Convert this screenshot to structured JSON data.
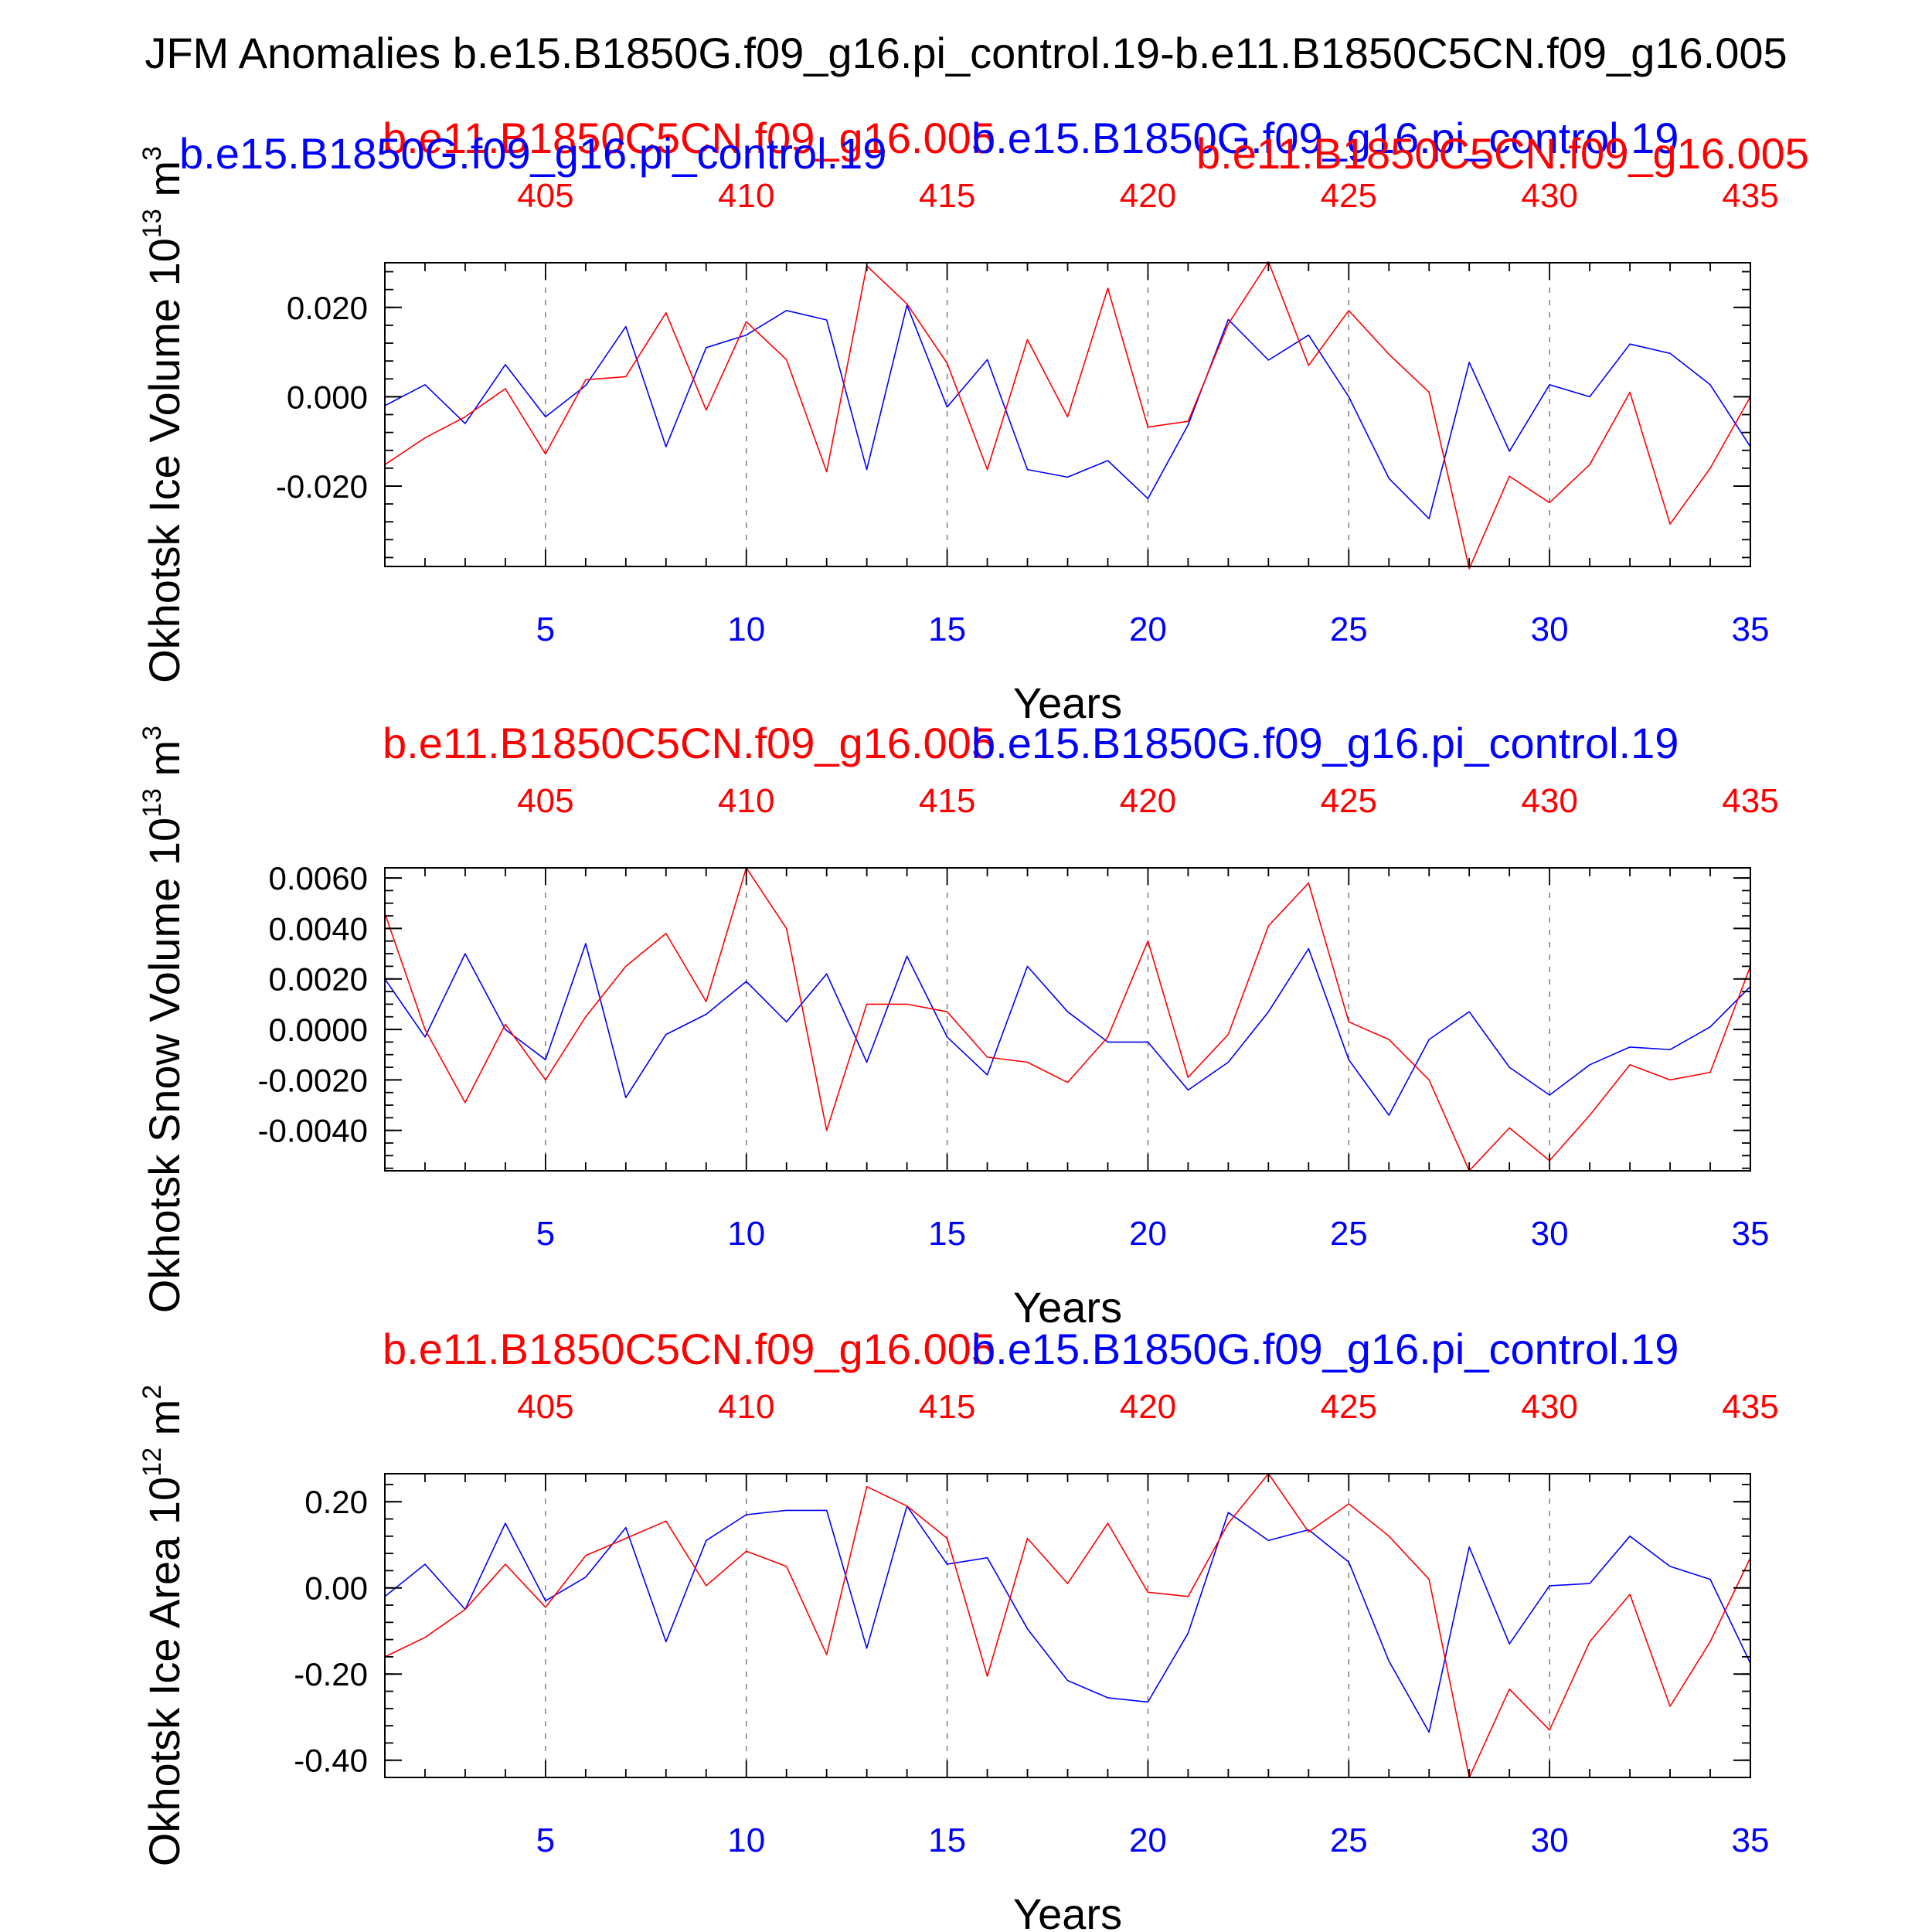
{
  "figure_title": "JFM Anomalies b.e15.B1850G.f09_g16.pi_control.19-b.e11.B1850C5CN.f09_g16.005",
  "colors": {
    "case1": "#0000ff",
    "case2": "#ff0000",
    "axis": "#000000",
    "grid": "#808080"
  },
  "chart_data": [
    {
      "type": "line",
      "ylabel_main": "Okhotsk Ice Volume 10",
      "ylabel_exp": "13",
      "ylabel_unit": " m",
      "ylabel_unit_exp": "3",
      "xlabel": "Years",
      "top_labels": {
        "left": "b.e11.B1850C5CN.f09_g16.005",
        "right": "b.e15.B1850G.f09_g16.pi_control.19"
      },
      "overlap_labels": {
        "left": "b.e15.B1850G.f09_g16.pi_control.19",
        "right": "b.e11.B1850C5CN.f09_g16.005"
      },
      "xlim": [
        1,
        35
      ],
      "ylim": [
        -0.038,
        0.03
      ],
      "bottom_ticks": [
        5,
        10,
        15,
        20,
        25,
        30,
        35
      ],
      "top_ticks": [
        405,
        410,
        415,
        420,
        425,
        430,
        435
      ],
      "top_offset": 400,
      "yticks": [
        0.02,
        0.0,
        -0.02
      ],
      "ytick_labels": [
        "0.020",
        "0.000",
        "-0.020"
      ],
      "yminor_step": 0.004,
      "series": [
        {
          "name": "b.e15.B1850G.f09_g16.pi_control.19",
          "color": "#0000ff",
          "x": [
            1,
            2,
            3,
            4,
            5,
            6,
            7,
            8,
            9,
            10,
            11,
            12,
            13,
            14,
            15,
            16,
            17,
            18,
            19,
            20,
            21,
            22,
            23,
            24,
            25,
            26,
            27,
            28,
            29,
            30,
            31,
            32,
            33,
            34,
            35
          ],
          "values": [
            -0.002,
            0.0027,
            -0.006,
            0.0072,
            -0.0045,
            0.0025,
            0.0157,
            -0.0112,
            0.011,
            0.0138,
            0.0193,
            0.0172,
            -0.0163,
            0.0205,
            -0.0023,
            0.0083,
            -0.0163,
            -0.018,
            -0.0143,
            -0.0228,
            -0.0063,
            0.0173,
            0.0082,
            0.0138,
            0.0,
            -0.0183,
            -0.0273,
            0.0077,
            -0.0122,
            0.0027,
            0.0,
            0.0118,
            0.0097,
            0.0027,
            -0.0112
          ]
        },
        {
          "name": "b.e11.B1850C5CN.f09_g16.005",
          "color": "#ff0000",
          "x": [
            1,
            2,
            3,
            4,
            5,
            6,
            7,
            8,
            9,
            10,
            11,
            12,
            13,
            14,
            15,
            16,
            17,
            18,
            19,
            20,
            21,
            22,
            23,
            24,
            25,
            26,
            27,
            28,
            29,
            30,
            31,
            32,
            33,
            34,
            35
          ],
          "values": [
            -0.0152,
            -0.0092,
            -0.0045,
            0.0018,
            -0.0128,
            0.0038,
            0.0045,
            0.0188,
            -0.003,
            0.0168,
            0.0083,
            -0.0168,
            0.0293,
            0.0208,
            0.0075,
            -0.0163,
            0.0128,
            -0.0045,
            0.0243,
            -0.0068,
            -0.0055,
            0.0163,
            0.0302,
            0.007,
            0.0193,
            0.0095,
            0.001,
            -0.0385,
            -0.0178,
            -0.0237,
            -0.0152,
            0.001,
            -0.0285,
            -0.016,
            0.0
          ]
        }
      ]
    },
    {
      "type": "line",
      "ylabel_main": "Okhotsk Snow Volume 10",
      "ylabel_exp": "13",
      "ylabel_unit": " m",
      "ylabel_unit_exp": "3",
      "xlabel": "Years",
      "top_labels": {
        "left": "b.e11.B1850C5CN.f09_g16.005",
        "right": "b.e15.B1850G.f09_g16.pi_control.19"
      },
      "xlim": [
        1,
        35
      ],
      "ylim": [
        -0.0056,
        0.0064
      ],
      "bottom_ticks": [
        5,
        10,
        15,
        20,
        25,
        30,
        35
      ],
      "top_ticks": [
        405,
        410,
        415,
        420,
        425,
        430,
        435
      ],
      "top_offset": 400,
      "yticks": [
        0.006,
        0.004,
        0.002,
        0.0,
        -0.002,
        -0.004
      ],
      "ytick_labels": [
        "0.0060",
        "0.0040",
        "0.0020",
        "0.0000",
        "-0.0020",
        "-0.0040"
      ],
      "yminor_step": 0.0005,
      "series": [
        {
          "name": "b.e15.B1850G.f09_g16.pi_control.19",
          "color": "#0000ff",
          "x": [
            1,
            2,
            3,
            4,
            5,
            6,
            7,
            8,
            9,
            10,
            11,
            12,
            13,
            14,
            15,
            16,
            17,
            18,
            19,
            20,
            21,
            22,
            23,
            24,
            25,
            26,
            27,
            28,
            29,
            30,
            31,
            32,
            33,
            34,
            35
          ],
          "values": [
            0.002,
            -0.0003,
            0.003,
            0.0,
            -0.0012,
            0.0034,
            -0.0027,
            -0.0002,
            0.0006,
            0.0019,
            0.0003,
            0.0022,
            -0.0013,
            0.0029,
            -0.0003,
            -0.0018,
            0.0025,
            0.0007,
            -0.0005,
            -0.0005,
            -0.0024,
            -0.0013,
            0.0007,
            0.0032,
            -0.0012,
            -0.0034,
            -0.0004,
            0.0007,
            -0.0015,
            -0.0026,
            -0.0014,
            -0.0007,
            -0.0008,
            0.0001,
            0.0017
          ]
        },
        {
          "name": "b.e11.B1850C5CN.f09_g16.005",
          "color": "#ff0000",
          "x": [
            1,
            2,
            3,
            4,
            5,
            6,
            7,
            8,
            9,
            10,
            11,
            12,
            13,
            14,
            15,
            16,
            17,
            18,
            19,
            20,
            21,
            22,
            23,
            24,
            25,
            26,
            27,
            28,
            29,
            30,
            31,
            32,
            33,
            34,
            35
          ],
          "values": [
            0.0046,
            0.0,
            -0.0029,
            0.0002,
            -0.002,
            0.0005,
            0.0025,
            0.0038,
            0.0011,
            0.0064,
            0.004,
            -0.004,
            0.001,
            0.001,
            0.0007,
            -0.0011,
            -0.0013,
            -0.0021,
            -0.0003,
            0.0035,
            -0.0019,
            -0.0002,
            0.0041,
            0.0058,
            0.0003,
            -0.0004,
            -0.002,
            -0.0056,
            -0.0039,
            -0.0052,
            -0.0034,
            -0.0014,
            -0.002,
            -0.0017,
            0.0025
          ]
        }
      ]
    },
    {
      "type": "line",
      "ylabel_main": "Okhotsk Ice Area 10",
      "ylabel_exp": "12",
      "ylabel_unit": " m",
      "ylabel_unit_exp": "2",
      "xlabel": "Years",
      "top_labels": {
        "left": "b.e11.B1850C5CN.f09_g16.005",
        "right": "b.e15.B1850G.f09_g16.pi_control.19"
      },
      "xlim": [
        1,
        35
      ],
      "ylim": [
        -0.44,
        0.265
      ],
      "bottom_ticks": [
        5,
        10,
        15,
        20,
        25,
        30,
        35
      ],
      "top_ticks": [
        405,
        410,
        415,
        420,
        425,
        430,
        435
      ],
      "top_offset": 400,
      "yticks": [
        0.2,
        0.0,
        -0.2,
        -0.4
      ],
      "ytick_labels": [
        "0.20",
        "0.00",
        "-0.20",
        "-0.40"
      ],
      "yminor_step": 0.04,
      "series": [
        {
          "name": "b.e15.B1850G.f09_g16.pi_control.19",
          "color": "#0000ff",
          "x": [
            1,
            2,
            3,
            4,
            5,
            6,
            7,
            8,
            9,
            10,
            11,
            12,
            13,
            14,
            15,
            16,
            17,
            18,
            19,
            20,
            21,
            22,
            23,
            24,
            25,
            26,
            27,
            28,
            29,
            30,
            31,
            32,
            33,
            34,
            35
          ],
          "values": [
            -0.02,
            0.055,
            -0.05,
            0.15,
            -0.03,
            0.025,
            0.14,
            -0.125,
            0.11,
            0.17,
            0.18,
            0.18,
            -0.14,
            0.19,
            0.055,
            0.07,
            -0.095,
            -0.215,
            -0.255,
            -0.265,
            -0.105,
            0.175,
            0.11,
            0.135,
            0.06,
            -0.17,
            -0.335,
            0.095,
            -0.13,
            0.005,
            0.01,
            0.12,
            0.05,
            0.02,
            -0.175
          ]
        },
        {
          "name": "b.e11.B1850C5CN.f09_g16.005",
          "color": "#ff0000",
          "x": [
            1,
            2,
            3,
            4,
            5,
            6,
            7,
            8,
            9,
            10,
            11,
            12,
            13,
            14,
            15,
            16,
            17,
            18,
            19,
            20,
            21,
            22,
            23,
            24,
            25,
            26,
            27,
            28,
            29,
            30,
            31,
            32,
            33,
            34,
            35
          ],
          "values": [
            -0.16,
            -0.115,
            -0.05,
            0.055,
            -0.045,
            0.075,
            0.115,
            0.155,
            0.005,
            0.085,
            0.05,
            -0.155,
            0.235,
            0.19,
            0.115,
            -0.205,
            0.115,
            0.01,
            0.15,
            -0.01,
            -0.02,
            0.15,
            0.265,
            0.13,
            0.195,
            0.12,
            0.02,
            -0.44,
            -0.235,
            -0.33,
            -0.125,
            -0.015,
            -0.275,
            -0.125,
            0.07
          ]
        }
      ]
    }
  ]
}
